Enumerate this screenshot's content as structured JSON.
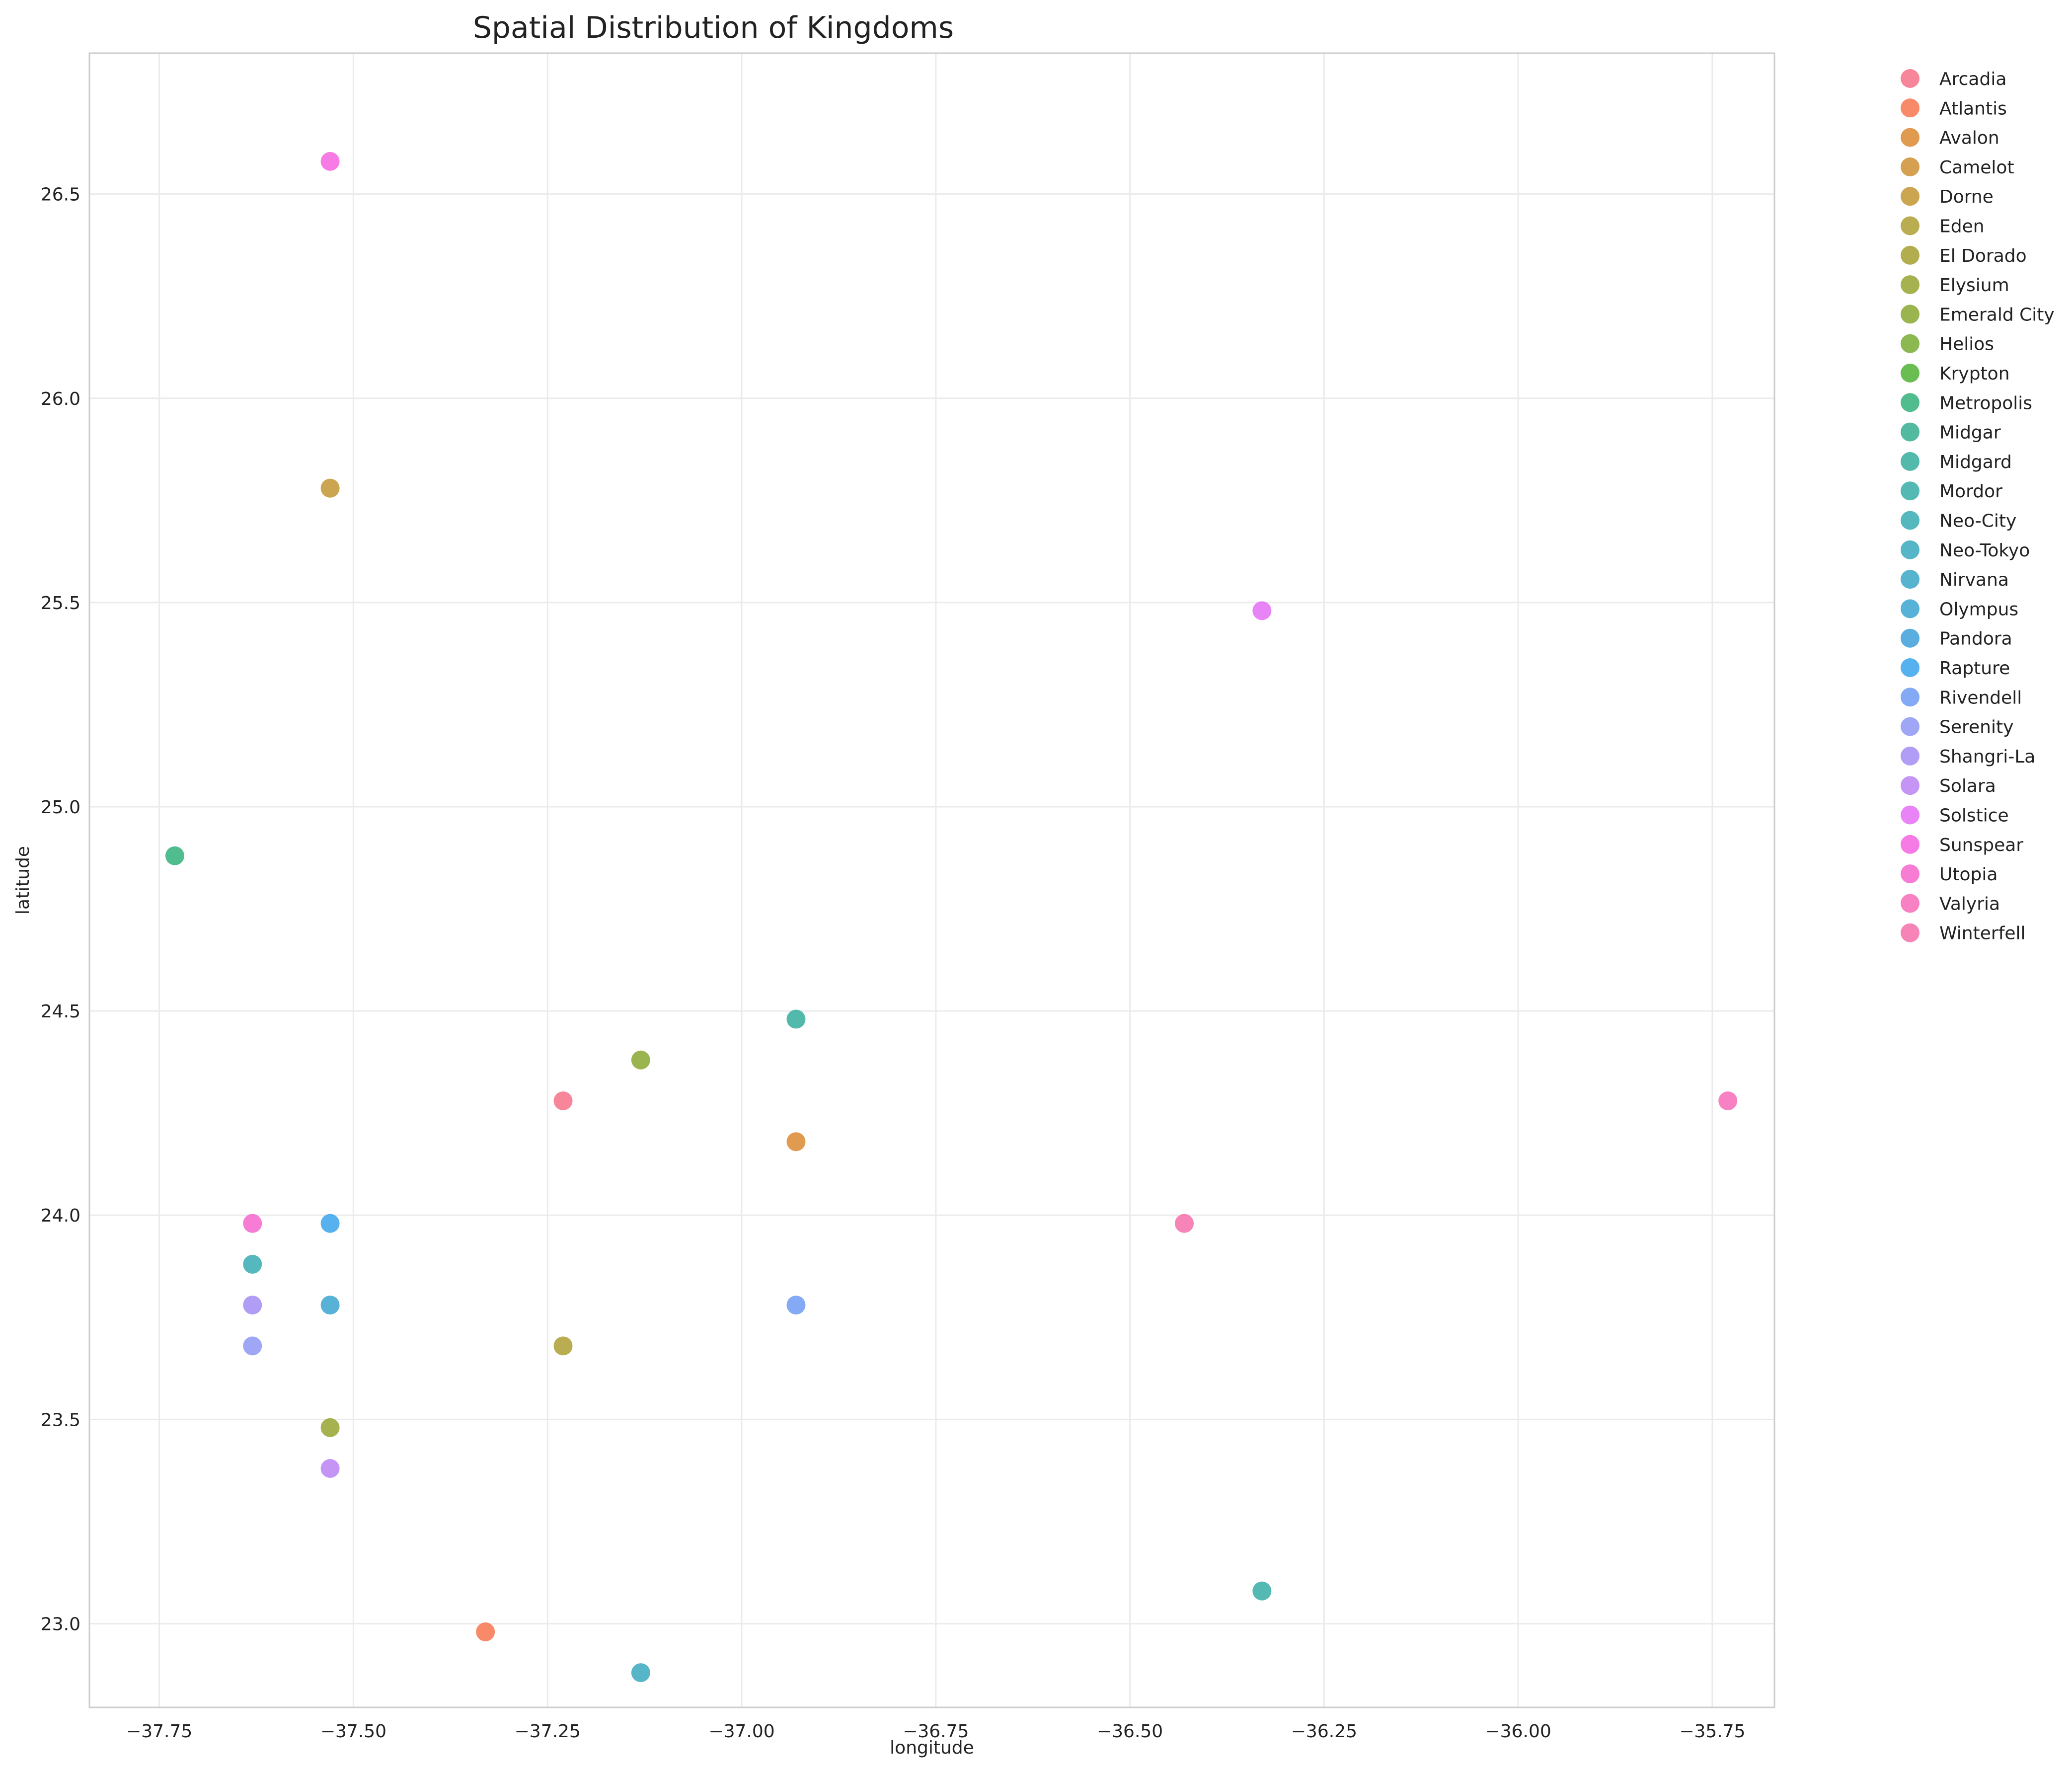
{
  "chart_data": {
    "type": "scatter",
    "title": "Spatial Distribution of Kingdoms",
    "xlabel": "longitude",
    "ylabel": "latitude",
    "xlim": [
      -37.84,
      -35.67
    ],
    "ylim": [
      22.795,
      26.845
    ],
    "xticks": [
      -37.75,
      -37.5,
      -37.25,
      -37.0,
      -36.75,
      -36.5,
      -36.25,
      -36.0,
      -35.75
    ],
    "xtick_labels": [
      "−37.75",
      "−37.50",
      "−37.25",
      "−37.00",
      "−36.75",
      "−36.50",
      "−36.25",
      "−36.00",
      "−35.75"
    ],
    "yticks": [
      23.0,
      23.5,
      24.0,
      24.5,
      25.0,
      25.5,
      26.0,
      26.5
    ],
    "ytick_labels": [
      "23.0",
      "23.5",
      "24.0",
      "24.5",
      "25.0",
      "25.5",
      "26.0",
      "26.5"
    ],
    "grid": true,
    "legend_position": "outside-right",
    "series": [
      {
        "name": "Arcadia",
        "color": "#f77189",
        "x": [
          -37.23
        ],
        "y": [
          24.28
        ]
      },
      {
        "name": "Atlantis",
        "color": "#f7754f",
        "x": [
          -37.33
        ],
        "y": [
          22.98
        ]
      },
      {
        "name": "Avalon",
        "color": "#dc8932",
        "x": [
          -36.93
        ],
        "y": [
          24.18
        ]
      },
      {
        "name": "Camelot",
        "color": "#ce9032",
        "x": [],
        "y": []
      },
      {
        "name": "Dorne",
        "color": "#c39532",
        "x": [
          -37.53
        ],
        "y": [
          25.78
        ]
      },
      {
        "name": "Eden",
        "color": "#ae9d31",
        "x": [
          -37.23
        ],
        "y": [
          23.68
        ]
      },
      {
        "name": "El Dorado",
        "color": "#a4a031",
        "x": [],
        "y": []
      },
      {
        "name": "Elysium",
        "color": "#97a431",
        "x": [
          -37.53
        ],
        "y": [
          23.48
        ]
      },
      {
        "name": "Emerald City",
        "color": "#88a831",
        "x": [
          -37.13
        ],
        "y": [
          24.38
        ]
      },
      {
        "name": "Helios",
        "color": "#77ab31",
        "x": [],
        "y": []
      },
      {
        "name": "Krypton",
        "color": "#50b131",
        "x": [],
        "y": []
      },
      {
        "name": "Metropolis",
        "color": "#33b07a",
        "x": [
          -37.73
        ],
        "y": [
          24.88
        ]
      },
      {
        "name": "Midgar",
        "color": "#34ae91",
        "x": [],
        "y": []
      },
      {
        "name": "Midgard",
        "color": "#35ad9c",
        "x": [
          -36.93
        ],
        "y": [
          24.48
        ]
      },
      {
        "name": "Mordor",
        "color": "#36ada4",
        "x": [
          -36.33
        ],
        "y": [
          23.08
        ]
      },
      {
        "name": "Neo-City",
        "color": "#37abb4",
        "x": [
          -37.63
        ],
        "y": [
          23.88
        ]
      },
      {
        "name": "Neo-Tokyo",
        "color": "#38a8bd",
        "x": [
          -37.13
        ],
        "y": [
          22.88
        ]
      },
      {
        "name": "Nirvana",
        "color": "#39a7c5",
        "x": [],
        "y": []
      },
      {
        "name": "Olympus",
        "color": "#3ba3d0",
        "x": [
          -37.53
        ],
        "y": [
          23.78
        ]
      },
      {
        "name": "Pandora",
        "color": "#3d9fd9",
        "x": [],
        "y": []
      },
      {
        "name": "Rapture",
        "color": "#3ba3ec",
        "x": [
          -37.53
        ],
        "y": [
          23.98
        ]
      },
      {
        "name": "Rivendell",
        "color": "#6e9bf4",
        "x": [
          -36.93
        ],
        "y": [
          23.78
        ]
      },
      {
        "name": "Serenity",
        "color": "#8e96f4",
        "x": [
          -37.63
        ],
        "y": [
          23.68
        ]
      },
      {
        "name": "Shangri-La",
        "color": "#a48cf4",
        "x": [
          -37.63
        ],
        "y": [
          23.78
        ]
      },
      {
        "name": "Solara",
        "color": "#bb83f4",
        "x": [
          -37.53
        ],
        "y": [
          23.38
        ]
      },
      {
        "name": "Solstice",
        "color": "#e56ef4",
        "x": [
          -36.33
        ],
        "y": [
          25.48
        ]
      },
      {
        "name": "Sunspear",
        "color": "#f564e1",
        "x": [
          -37.53
        ],
        "y": [
          26.58
        ]
      },
      {
        "name": "Utopia",
        "color": "#f565cc",
        "x": [
          -37.63
        ],
        "y": [
          23.98
        ]
      },
      {
        "name": "Valyria",
        "color": "#f66bb9",
        "x": [
          -35.73
        ],
        "y": [
          24.28
        ]
      },
      {
        "name": "Winterfell",
        "color": "#f66ea9",
        "x": [
          -36.43
        ],
        "y": [
          23.98
        ]
      }
    ]
  }
}
